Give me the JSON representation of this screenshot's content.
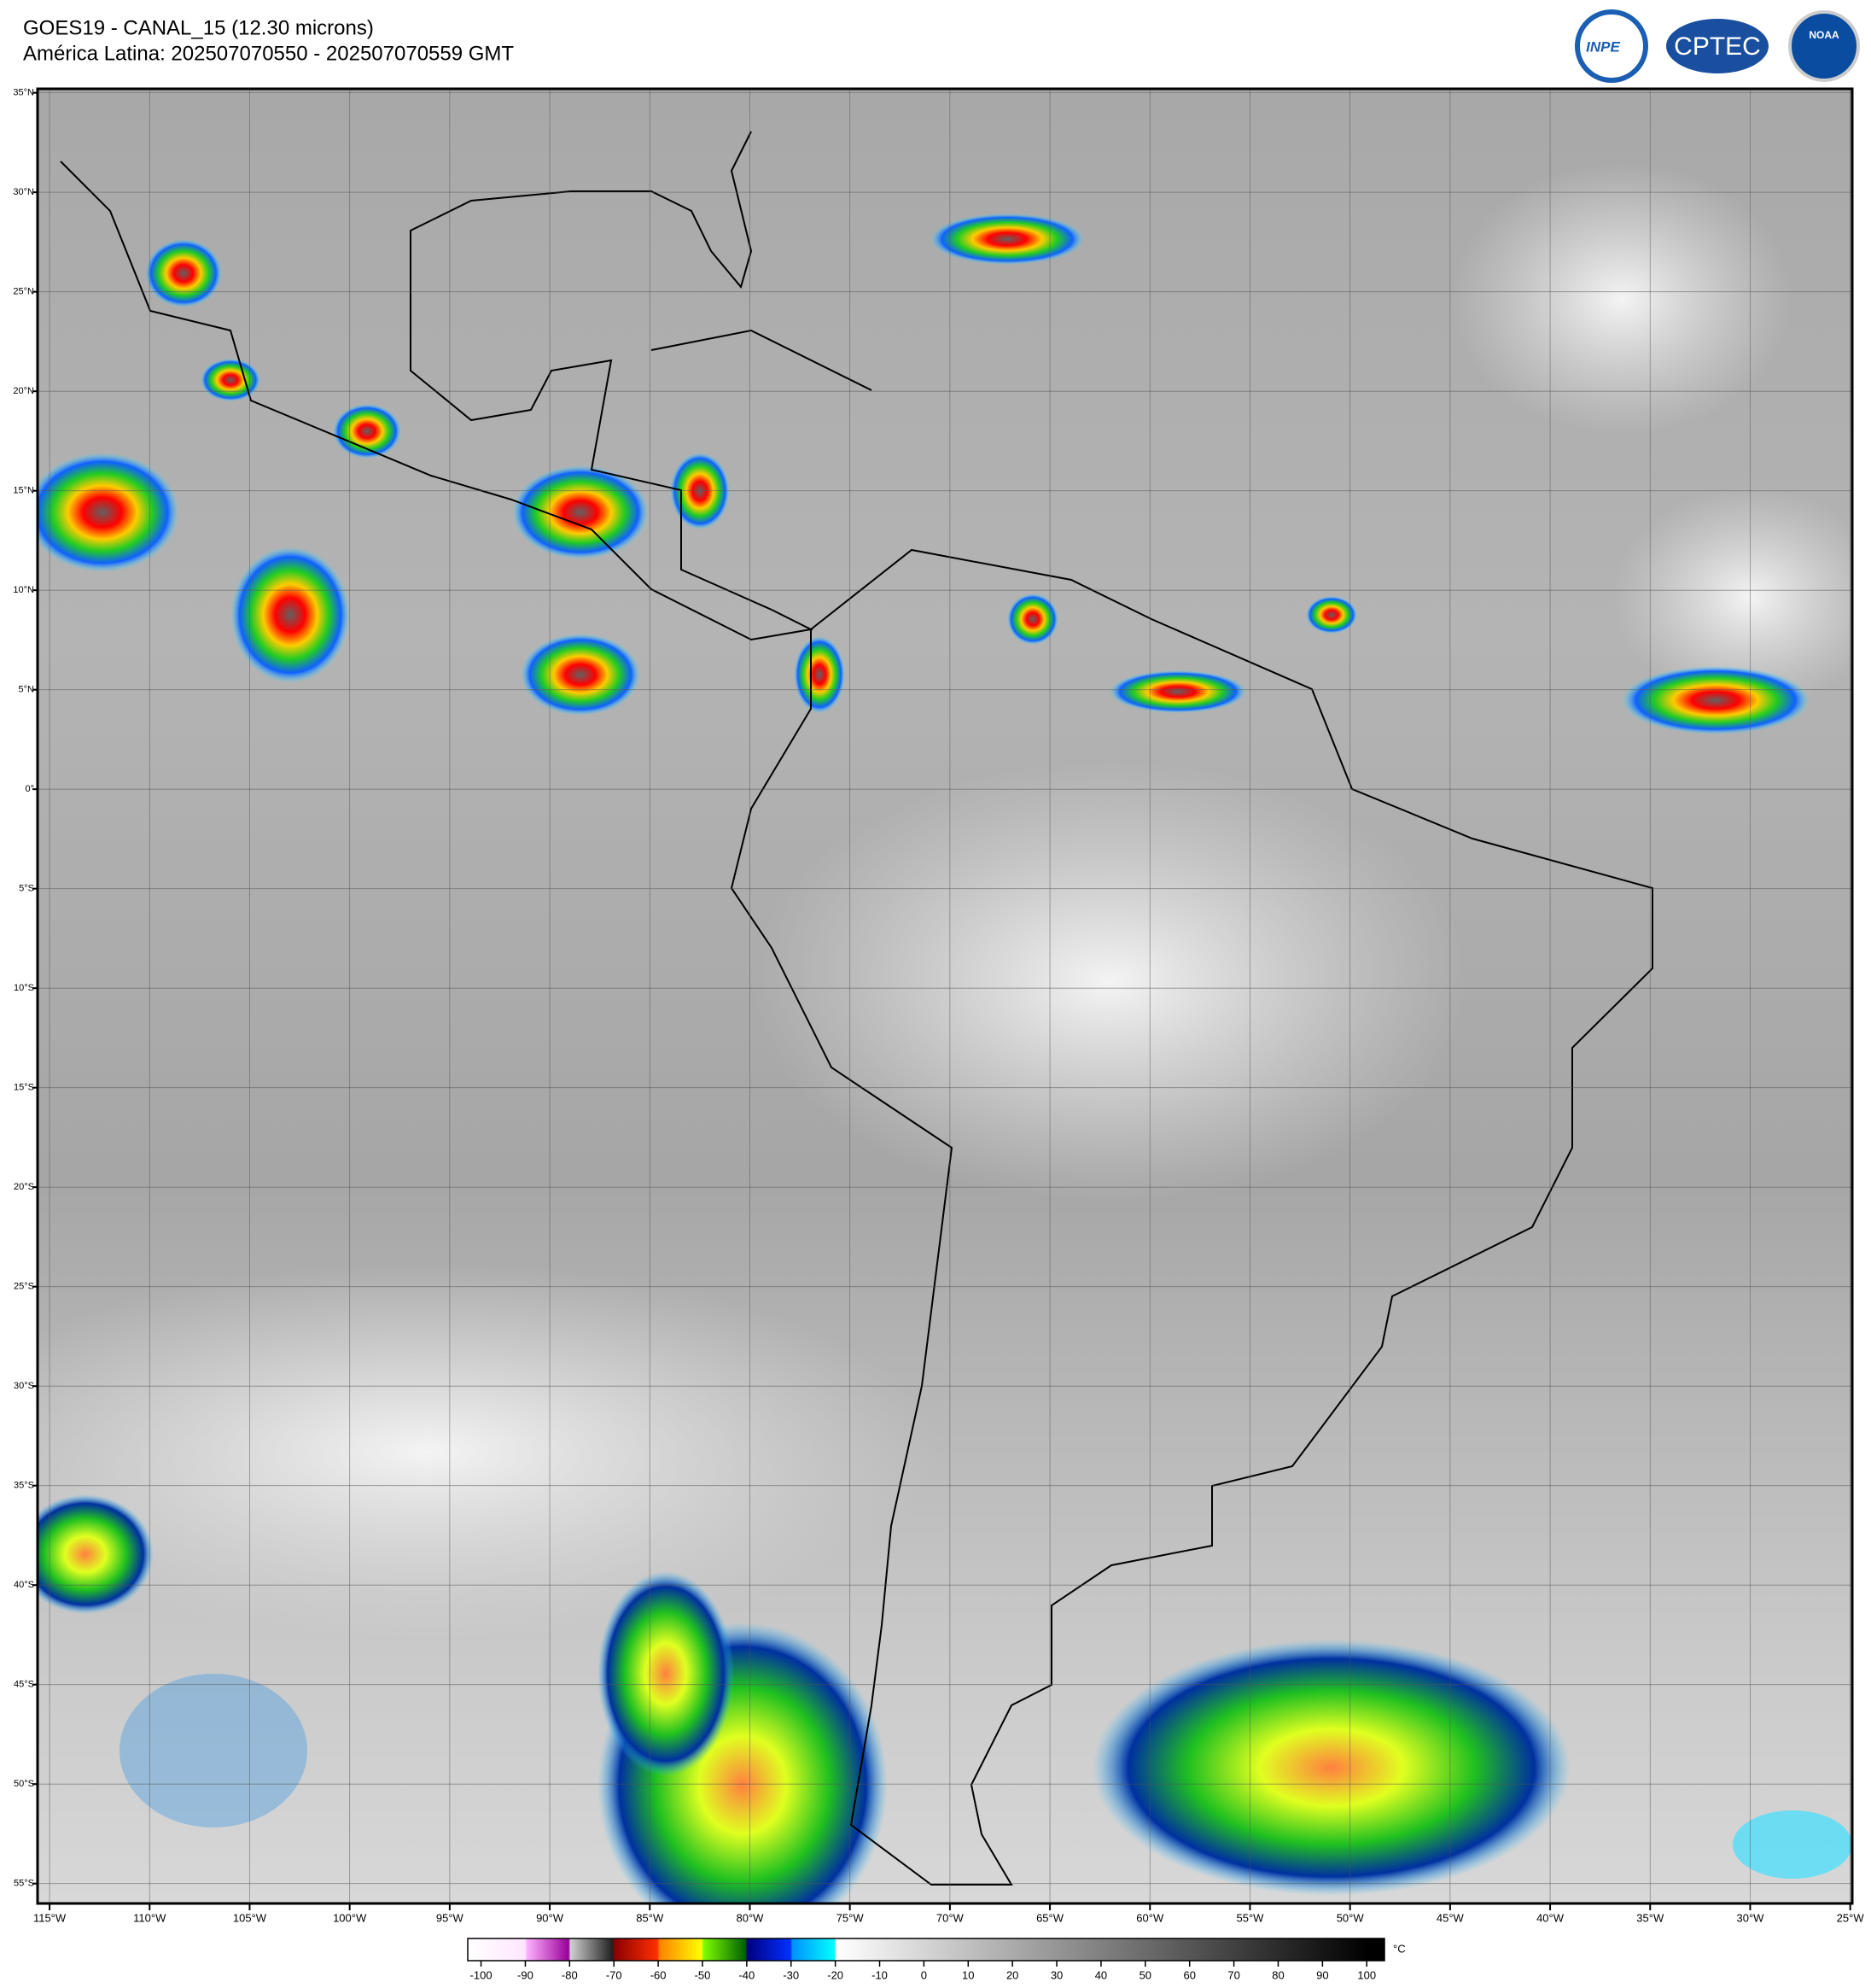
{
  "header": {
    "title": "GOES19 - CANAL_15 (12.30 microns)",
    "subtitle": "América Latina: 202507070550 - 202507070559 GMT",
    "logos": [
      "INPE",
      "CPTEC",
      "NOAA"
    ]
  },
  "map": {
    "xlim": [
      -115.6,
      -24.9
    ],
    "ylim": [
      -56,
      35.2
    ],
    "xticks": [
      {
        "value": -115,
        "label": "115°W"
      },
      {
        "value": -110,
        "label": "110°W"
      },
      {
        "value": -105,
        "label": "105°W"
      },
      {
        "value": -100,
        "label": "100°W"
      },
      {
        "value": -95,
        "label": "95°W"
      },
      {
        "value": -90,
        "label": "90°W"
      },
      {
        "value": -85,
        "label": "85°W"
      },
      {
        "value": -80,
        "label": "80°W"
      },
      {
        "value": -75,
        "label": "75°W"
      },
      {
        "value": -70,
        "label": "70°W"
      },
      {
        "value": -65,
        "label": "65°W"
      },
      {
        "value": -60,
        "label": "60°W"
      },
      {
        "value": -55,
        "label": "55°W"
      },
      {
        "value": -50,
        "label": "50°W"
      },
      {
        "value": -45,
        "label": "45°W"
      },
      {
        "value": -40,
        "label": "40°W"
      },
      {
        "value": -35,
        "label": "35°W"
      },
      {
        "value": -30,
        "label": "30°W"
      },
      {
        "value": -25,
        "label": "25°W"
      }
    ],
    "yticks": [
      {
        "value": 35,
        "label": "35°N"
      },
      {
        "value": 30,
        "label": "30°N"
      },
      {
        "value": 25,
        "label": "25°N"
      },
      {
        "value": 20,
        "label": "20°N"
      },
      {
        "value": 15,
        "label": "15°N"
      },
      {
        "value": 10,
        "label": "10°N"
      },
      {
        "value": 5,
        "label": "5°N"
      },
      {
        "value": 0,
        "label": "0°"
      },
      {
        "value": -5,
        "label": "5°S"
      },
      {
        "value": -10,
        "label": "10°S"
      },
      {
        "value": -15,
        "label": "15°S"
      },
      {
        "value": -20,
        "label": "20°S"
      },
      {
        "value": -25,
        "label": "25°S"
      },
      {
        "value": -30,
        "label": "30°S"
      },
      {
        "value": -35,
        "label": "35°S"
      },
      {
        "value": -40,
        "label": "40°S"
      },
      {
        "value": -45,
        "label": "45°S"
      },
      {
        "value": -50,
        "label": "50°S"
      },
      {
        "value": -55,
        "label": "55°S"
      }
    ]
  },
  "colorbar": {
    "unit": "°C",
    "range": [
      -103,
      104
    ],
    "ticks": [
      -100,
      -90,
      -80,
      -70,
      -60,
      -50,
      -40,
      -30,
      -20,
      -10,
      0,
      10,
      20,
      30,
      40,
      50,
      60,
      70,
      80,
      90,
      100
    ]
  }
}
